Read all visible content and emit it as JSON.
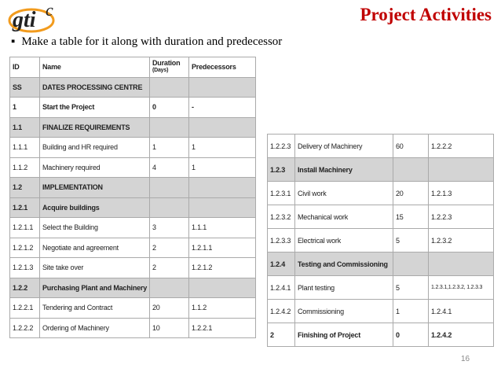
{
  "header": {
    "logo": {
      "text": "gti",
      "mark": "c"
    },
    "title": "Project Activities",
    "bullet": "Make a table for it along with duration and predecessor"
  },
  "table_left": {
    "header": [
      "ID",
      "Name",
      "Duration",
      "(Days)",
      "Predecessors"
    ],
    "rows": [
      [
        "SS",
        "DATES PROCESSING CENTRE"
      ],
      [
        "1",
        "Start the Project",
        "0",
        "-"
      ],
      [
        "1.1",
        "FINALIZE REQUIREMENTS"
      ],
      [
        "1.1.1",
        "Building and HR required",
        "1",
        "1"
      ],
      [
        "1.1.2",
        "Machinery required",
        "4",
        "1"
      ],
      [
        "1.2",
        "IMPLEMENTATION"
      ],
      [
        "1.2.1",
        "Acquire buildings"
      ],
      [
        "1.2.1.1",
        "Select the Building",
        "3",
        "1.1.1"
      ],
      [
        "1.2.1.2",
        "Negotiate and agreement",
        "2",
        "1.2.1.1"
      ],
      [
        "1.2.1.3",
        "Site take over",
        "2",
        "1.2.1.2"
      ],
      [
        "1.2.2",
        "Purchasing Plant and Machinery"
      ],
      [
        "1.2.2.1",
        "Tendering and Contract",
        "20",
        "1.1.2"
      ],
      [
        "1.2.2.2",
        "Ordering of Machinery",
        "10",
        "1.2.2.1"
      ]
    ]
  },
  "table_right": {
    "rows": [
      [
        "1.2.2.3",
        "Delivery of Machinery",
        "60",
        "1.2.2.2"
      ],
      [
        "1.2.3",
        "Install Machinery"
      ],
      [
        "1.2.3.1",
        "Civil work",
        "20",
        "1.2.1.3"
      ],
      [
        "1.2.3.2",
        "Mechanical work",
        "15",
        "1.2.2.3"
      ],
      [
        "1.2.3.3",
        "Electrical work",
        "5",
        "1.2.3.2"
      ],
      [
        "1.2.4",
        "Testing and Commissioning"
      ],
      [
        "1.2.4.1",
        "Plant testing",
        "5",
        "1.2.3.1,1.2.3.2, 1.2.3.3"
      ],
      [
        "1.2.4.2",
        "Commissioning",
        "1",
        "1.2.4.1"
      ],
      [
        "2",
        "Finishing of Project",
        "0",
        "1.2.4.2"
      ]
    ]
  },
  "footer": {
    "page": "16"
  }
}
